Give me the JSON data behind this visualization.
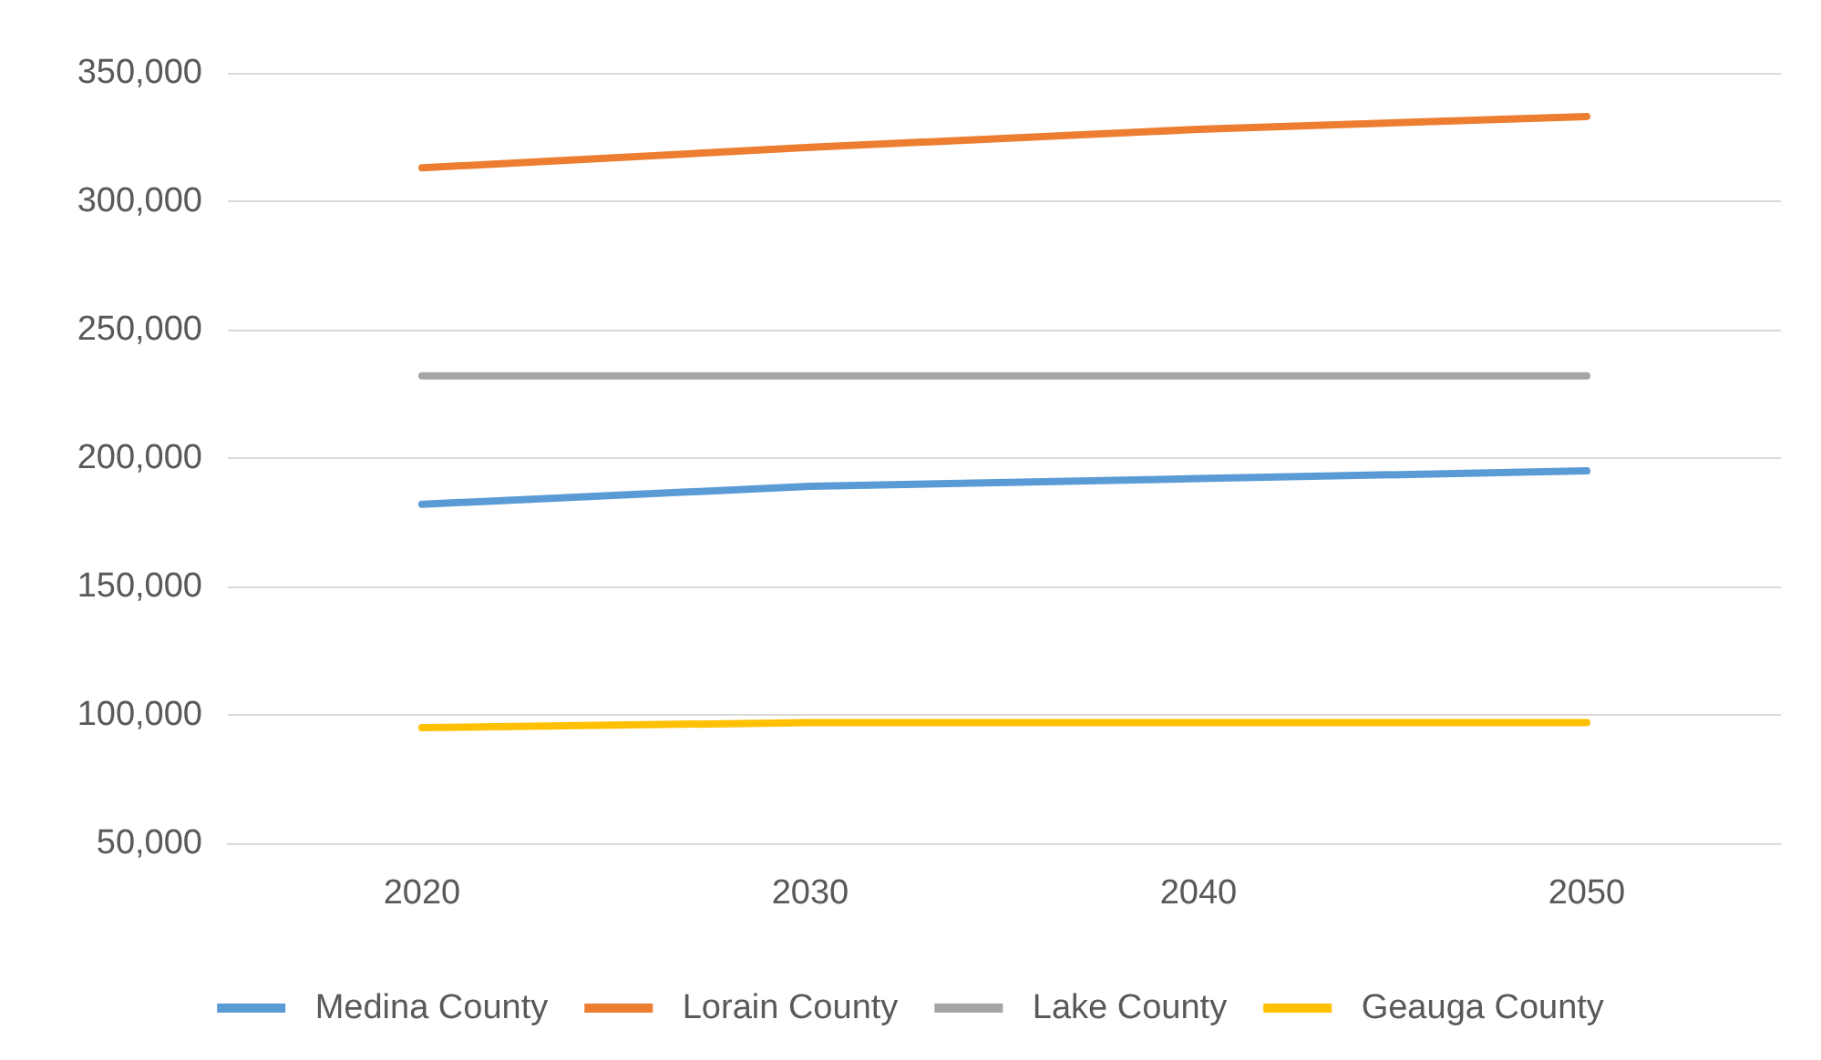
{
  "chart_data": {
    "type": "line",
    "categories": [
      "2020",
      "2030",
      "2040",
      "2050"
    ],
    "series": [
      {
        "name": "Medina County",
        "color": "#5b9bd5",
        "values": [
          182000,
          189000,
          192000,
          195000
        ]
      },
      {
        "name": "Lorain County",
        "color": "#ed7d31",
        "values": [
          313000,
          321000,
          328000,
          333000
        ]
      },
      {
        "name": "Lake County",
        "color": "#a5a5a5",
        "values": [
          232000,
          232000,
          232000,
          232000
        ]
      },
      {
        "name": "Geauga County",
        "color": "#ffc000",
        "values": [
          95000,
          97000,
          97000,
          97000
        ]
      }
    ],
    "ylim": [
      50000,
      350000
    ],
    "yticks": [
      {
        "value": 50000,
        "label": "50,000"
      },
      {
        "value": 100000,
        "label": "100,000"
      },
      {
        "value": 150000,
        "label": "150,000"
      },
      {
        "value": 200000,
        "label": "200,000"
      },
      {
        "value": 250000,
        "label": "250,000"
      },
      {
        "value": 300000,
        "label": "300,000"
      },
      {
        "value": 350000,
        "label": "350,000"
      }
    ],
    "grid": "y",
    "legend": "bottom",
    "marker": "none",
    "line_style": "solid"
  }
}
